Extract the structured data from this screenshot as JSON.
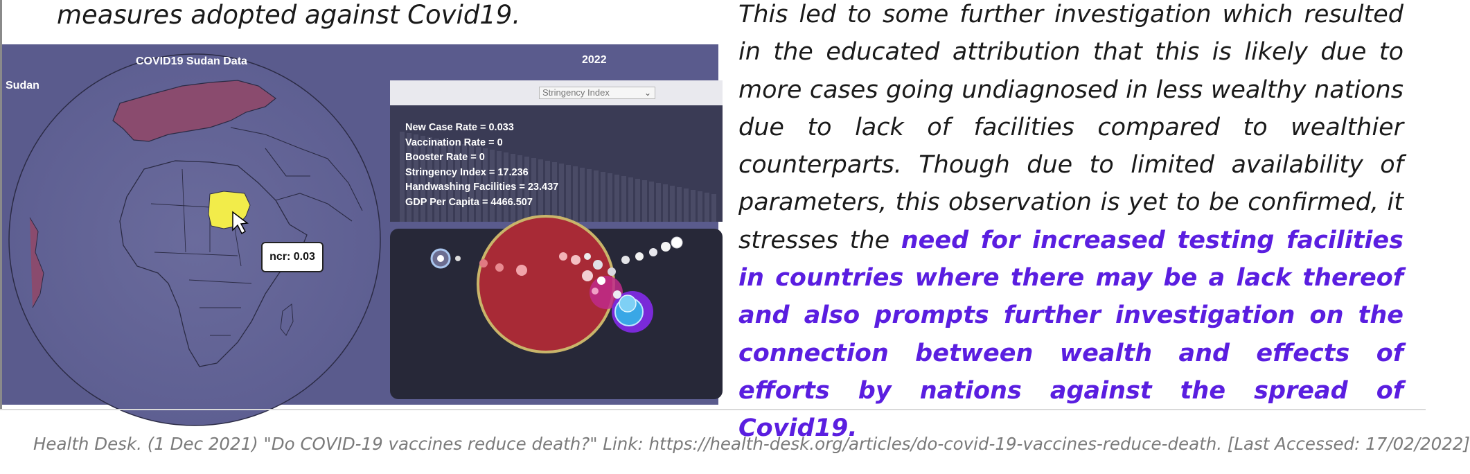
{
  "top_caption": "measures adopted against Covid19.",
  "viz": {
    "title": "COVID19 Sudan Data",
    "country": "Sudan",
    "year": "2022",
    "tooltip": "ncr: 0.03",
    "dropdown_selected": "Stringency Index",
    "stats": [
      "New Case Rate = 0.033",
      "Vaccination Rate = 0",
      "Booster Rate = 0",
      "Stringency Index = 17.236",
      "Handwashing Facilities = 23.437",
      "GDP Per Capita = 4466.507"
    ],
    "colors": {
      "background": "#5a5b8d",
      "highlighted_country": "#f2ec4a",
      "europe_fill": "#8a4b6e",
      "panel": "#3a3b55",
      "bubble_panel": "#272838"
    }
  },
  "body_text": {
    "plain": "This led to some further investigation which resulted in the educated attribution that this is likely due to more cases going undiagnosed in less wealthy nations due to lack of facilities compared to wealthier counterparts. Though due to limited availability of parameters, this observation is yet to be confirmed, it stresses the",
    "highlight": "need for increased testing facilities in countries where there may be a lack thereof and also prompts further investigation on the connection between wealth and effects of efforts by nations against the spread of Covid19."
  },
  "reference": "Health Desk. (1 Dec 2021) \"Do COVID-19 vaccines reduce death?\" Link: https://health-desk.org/articles/do-covid-19-vaccines-reduce-death. [Last Accessed: 17/02/2022]"
}
